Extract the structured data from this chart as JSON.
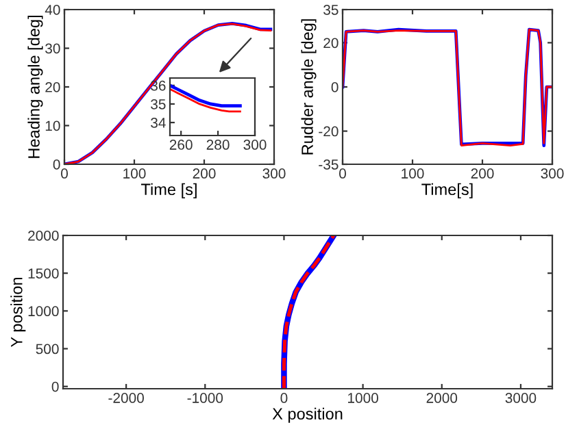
{
  "chart_data": [
    {
      "type": "line",
      "xlabel": "Time [s]",
      "ylabel": "Heading angle [deg]",
      "xlim": [
        0,
        300
      ],
      "ylim": [
        0,
        40
      ],
      "xticks": [
        0,
        100,
        200,
        300
      ],
      "yticks": [
        0,
        10,
        20,
        30,
        40
      ],
      "grid": false,
      "legend": false,
      "series": [
        {
          "color": "#0000ff",
          "line_style": "solid",
          "x": [
            0,
            20,
            40,
            60,
            80,
            100,
            120,
            140,
            160,
            180,
            200,
            220,
            240,
            260,
            280,
            295
          ],
          "values": [
            0,
            0.7,
            3,
            6.5,
            10.5,
            15,
            19.5,
            24,
            28.5,
            32,
            34.5,
            36,
            36.4,
            35.9,
            34.9,
            34.9
          ]
        },
        {
          "color": "#ff0000",
          "line_style": "solid",
          "x": [
            0,
            20,
            40,
            60,
            80,
            100,
            120,
            140,
            160,
            180,
            200,
            220,
            240,
            260,
            280,
            295
          ],
          "values": [
            0,
            0.7,
            3,
            6.5,
            10.5,
            15,
            19.5,
            24,
            28.5,
            32,
            34.5,
            36,
            36.3,
            35.7,
            34.7,
            34.6
          ]
        }
      ]
    },
    {
      "type": "line",
      "xlim": [
        254,
        300
      ],
      "ylim": [
        33.3,
        36.4
      ],
      "xticks": [
        260,
        280,
        300
      ],
      "yticks": [
        34,
        35,
        36
      ],
      "grid": false,
      "legend": false,
      "series": [
        {
          "color": "#0000ff",
          "line_style": "solid",
          "x": [
            254,
            258,
            264,
            270,
            276,
            282,
            286,
            292
          ],
          "values": [
            36.0,
            35.8,
            35.5,
            35.2,
            35.0,
            34.9,
            34.9,
            34.9
          ]
        },
        {
          "color": "#ff0000",
          "line_style": "solid",
          "x": [
            254,
            258,
            264,
            270,
            276,
            282,
            286,
            292
          ],
          "values": [
            35.8,
            35.6,
            35.3,
            35.0,
            34.8,
            34.65,
            34.6,
            34.6
          ]
        }
      ]
    },
    {
      "type": "line",
      "xlabel": "Time[s]",
      "ylabel": "Rudder angle [deg]",
      "xlim": [
        0,
        300
      ],
      "ylim": [
        -35,
        35
      ],
      "xticks": [
        0,
        100,
        200,
        300
      ],
      "yticks": [
        -35,
        -20,
        0,
        20,
        35
      ],
      "grid": false,
      "legend": false,
      "series": [
        {
          "color": "#0000ff",
          "line_style": "solid",
          "x": [
            0,
            5,
            30,
            50,
            80,
            120,
            162,
            170,
            200,
            240,
            258,
            262,
            267,
            280,
            283,
            288,
            292,
            298
          ],
          "values": [
            0,
            25,
            25.5,
            25,
            26,
            25.3,
            25.3,
            -26,
            -25.5,
            -25.5,
            -25.5,
            5,
            26,
            25.5,
            20,
            -26.5,
            0,
            0
          ]
        },
        {
          "color": "#ff0000",
          "line_style": "solid",
          "x": [
            0,
            5,
            30,
            50,
            80,
            120,
            162,
            170,
            200,
            240,
            258,
            262,
            267,
            280,
            283,
            288,
            292,
            298
          ],
          "values": [
            0,
            25,
            25.5,
            25,
            25.5,
            25.3,
            25.3,
            -26.5,
            -25.5,
            -26.5,
            -25.8,
            5,
            26,
            25.5,
            20,
            -25.5,
            0,
            0
          ]
        }
      ]
    },
    {
      "type": "line",
      "xlabel": "X position",
      "ylabel": "Y position",
      "xlim": [
        -2800,
        3400
      ],
      "ylim": [
        -30,
        2000
      ],
      "xticks": [
        -2000,
        -1000,
        0,
        1000,
        2000,
        3000
      ],
      "yticks": [
        0,
        500,
        1000,
        1500,
        2000
      ],
      "grid": false,
      "legend": false,
      "series": [
        {
          "color": "#0000ff",
          "line_style": "solid",
          "x": [
            0,
            0,
            10,
            30,
            60,
            100,
            150,
            220,
            300,
            380,
            450,
            540,
            630
          ],
          "values": [
            -30,
            300,
            600,
            800,
            950,
            1100,
            1250,
            1380,
            1500,
            1600,
            1700,
            1850,
            2000
          ]
        },
        {
          "color": "#ff0000",
          "line_style": "dashed",
          "x": [
            0,
            0,
            10,
            30,
            60,
            100,
            150,
            220,
            300,
            380,
            450,
            540,
            630
          ],
          "values": [
            -30,
            300,
            600,
            800,
            950,
            1100,
            1250,
            1380,
            1500,
            1600,
            1700,
            1850,
            2000
          ]
        }
      ]
    }
  ]
}
